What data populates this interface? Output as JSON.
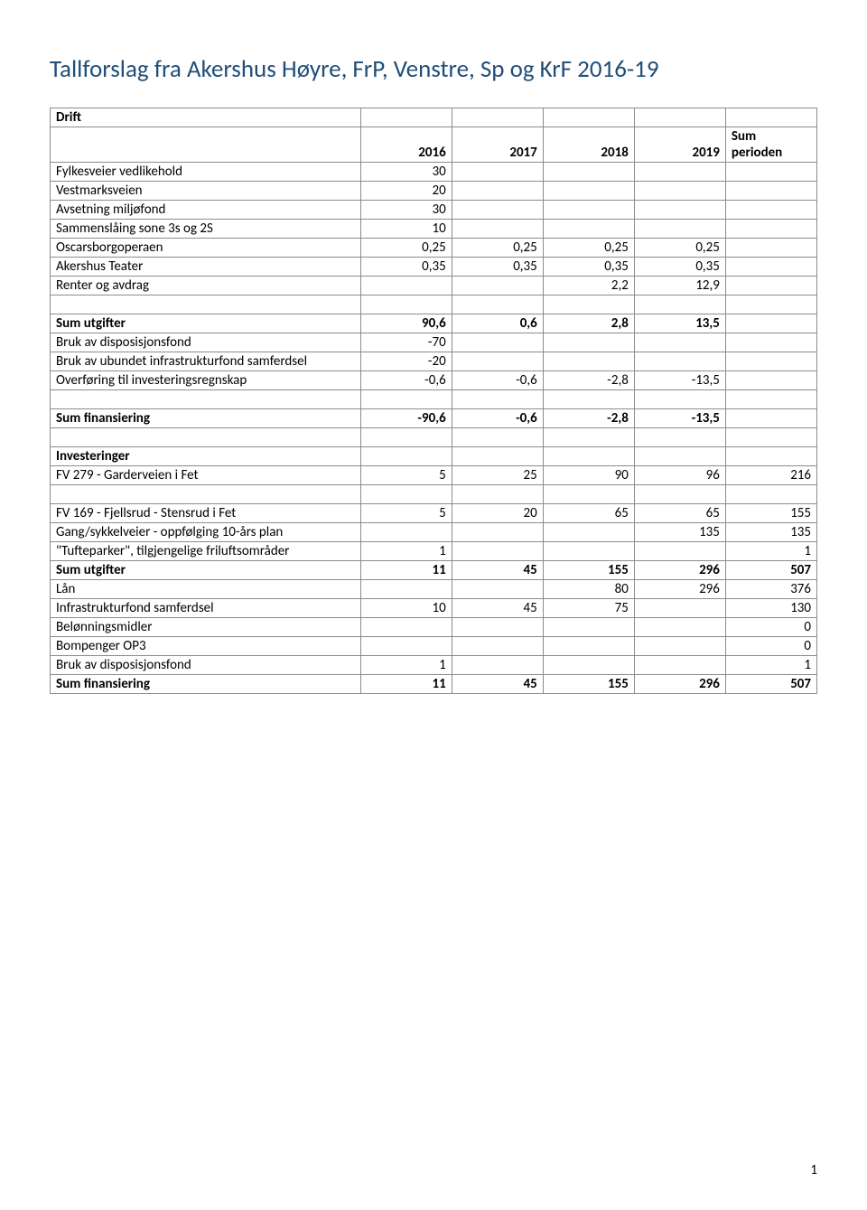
{
  "title": "Tallforslag fra Akershus Høyre, FrP, Venstre, Sp og KrF 2016-19",
  "header": {
    "c1": "2016",
    "c2": "2017",
    "c3": "2018",
    "c4": "2019",
    "c5a": "Sum",
    "c5b": "perioden"
  },
  "rows": [
    {
      "bold": true,
      "l": "Drift"
    },
    {
      "header": true
    },
    {
      "l": "Fylkesveier vedlikehold",
      "v": [
        "30",
        "",
        "",
        "",
        ""
      ]
    },
    {
      "l": "Vestmarksveien",
      "v": [
        "20",
        "",
        "",
        "",
        ""
      ]
    },
    {
      "l": "Avsetning miljøfond",
      "v": [
        "30",
        "",
        "",
        "",
        ""
      ]
    },
    {
      "l": "Sammenslåing sone 3s og 2S",
      "v": [
        "10",
        "",
        "",
        "",
        ""
      ]
    },
    {
      "l": "Oscarsborgoperaen",
      "v": [
        "0,25",
        "0,25",
        "0,25",
        "0,25",
        ""
      ]
    },
    {
      "l": "Akershus Teater",
      "v": [
        "0,35",
        "0,35",
        "0,35",
        "0,35",
        ""
      ]
    },
    {
      "l": "Renter og avdrag",
      "v": [
        "",
        "",
        "2,2",
        "12,9",
        ""
      ]
    },
    {
      "spacer": true
    },
    {
      "bold": true,
      "l": "Sum utgifter",
      "v": [
        "90,6",
        "0,6",
        "2,8",
        "13,5",
        ""
      ]
    },
    {
      "l": "Bruk av disposisjonsfond",
      "v": [
        "-70",
        "",
        "",
        "",
        ""
      ]
    },
    {
      "l": "Bruk av ubundet infrastrukturfond samferdsel",
      "v": [
        "-20",
        "",
        "",
        "",
        ""
      ]
    },
    {
      "l": "Overføring til investeringsregnskap",
      "v": [
        "-0,6",
        "-0,6",
        "-2,8",
        "-13,5",
        ""
      ]
    },
    {
      "spacer": true
    },
    {
      "bold": true,
      "l": "Sum finansiering",
      "v": [
        "-90,6",
        "-0,6",
        "-2,8",
        "-13,5",
        ""
      ]
    },
    {
      "spacer": true
    },
    {
      "bold": true,
      "l": "Investeringer"
    },
    {
      "l": "FV 279 - Garderveien i Fet",
      "v": [
        "5",
        "25",
        "90",
        "96",
        "216"
      ]
    },
    {
      "spacer": true
    },
    {
      "l": "FV 169 - Fjellsrud - Stensrud i Fet",
      "v": [
        "5",
        "20",
        "65",
        "65",
        "155"
      ]
    },
    {
      "l": "Gang/sykkelveier - oppfølging 10-års plan",
      "v": [
        "",
        "",
        "",
        "135",
        "135"
      ]
    },
    {
      "l": "\"Tufteparker\", tilgjengelige friluftsområder",
      "v": [
        "1",
        "",
        "",
        "",
        "1"
      ]
    },
    {
      "bold": true,
      "l": "Sum utgifter",
      "v": [
        "11",
        "45",
        "155",
        "296",
        "507"
      ]
    },
    {
      "l": "Lån",
      "v": [
        "",
        "",
        "80",
        "296",
        "376"
      ]
    },
    {
      "l": "Infrastrukturfond samferdsel",
      "v": [
        "10",
        "45",
        "75",
        "",
        "130"
      ]
    },
    {
      "l": "Belønningsmidler",
      "v": [
        "",
        "",
        "",
        "",
        "0"
      ]
    },
    {
      "l": "Bompenger OP3",
      "v": [
        "",
        "",
        "",
        "",
        "0"
      ]
    },
    {
      "l": "Bruk av disposisjonsfond",
      "v": [
        "1",
        "",
        "",
        "",
        "1"
      ]
    },
    {
      "bold": true,
      "l": "Sum finansiering",
      "v": [
        "11",
        "45",
        "155",
        "296",
        "507"
      ]
    }
  ],
  "pagenum": "1"
}
